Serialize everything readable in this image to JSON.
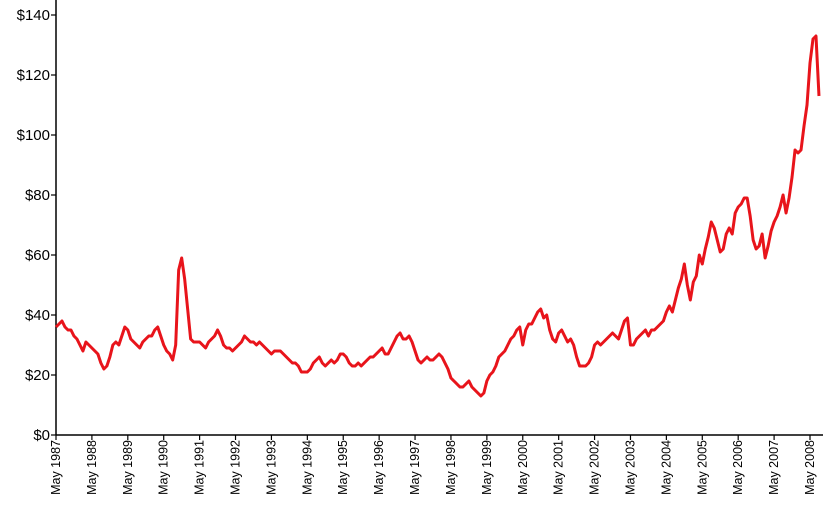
{
  "chart_data": {
    "type": "line",
    "color": "#e8141b",
    "ylim": [
      0,
      140
    ],
    "yticks": [
      {
        "value": 0,
        "label": "$0"
      },
      {
        "value": 20,
        "label": "$20"
      },
      {
        "value": 40,
        "label": "$40"
      },
      {
        "value": 60,
        "label": "$60"
      },
      {
        "value": 80,
        "label": "$80"
      },
      {
        "value": 100,
        "label": "$100"
      },
      {
        "value": 120,
        "label": "$120"
      },
      {
        "value": 140,
        "label": "$140"
      }
    ],
    "categories": [
      "May 1987",
      null,
      null,
      null,
      null,
      null,
      null,
      null,
      null,
      null,
      null,
      null,
      "May 1988",
      null,
      null,
      null,
      null,
      null,
      null,
      null,
      null,
      null,
      null,
      null,
      "May 1989",
      null,
      null,
      null,
      null,
      null,
      null,
      null,
      null,
      null,
      null,
      null,
      "May 1990",
      null,
      null,
      null,
      null,
      null,
      null,
      null,
      null,
      null,
      null,
      null,
      "May 1991",
      null,
      null,
      null,
      null,
      null,
      null,
      null,
      null,
      null,
      null,
      null,
      "May 1992",
      null,
      null,
      null,
      null,
      null,
      null,
      null,
      null,
      null,
      null,
      null,
      "May 1993",
      null,
      null,
      null,
      null,
      null,
      null,
      null,
      null,
      null,
      null,
      null,
      "May 1994",
      null,
      null,
      null,
      null,
      null,
      null,
      null,
      null,
      null,
      null,
      null,
      "May 1995",
      null,
      null,
      null,
      null,
      null,
      null,
      null,
      null,
      null,
      null,
      null,
      "May 1996",
      null,
      null,
      null,
      null,
      null,
      null,
      null,
      null,
      null,
      null,
      null,
      "May 1997",
      null,
      null,
      null,
      null,
      null,
      null,
      null,
      null,
      null,
      null,
      null,
      "May 1998",
      null,
      null,
      null,
      null,
      null,
      null,
      null,
      null,
      null,
      null,
      null,
      "May 1999",
      null,
      null,
      null,
      null,
      null,
      null,
      null,
      null,
      null,
      null,
      null,
      "May 2000",
      null,
      null,
      null,
      null,
      null,
      null,
      null,
      null,
      null,
      null,
      null,
      "May 2001",
      null,
      null,
      null,
      null,
      null,
      null,
      null,
      null,
      null,
      null,
      null,
      "May 2002",
      null,
      null,
      null,
      null,
      null,
      null,
      null,
      null,
      null,
      null,
      null,
      "May 2003",
      null,
      null,
      null,
      null,
      null,
      null,
      null,
      null,
      null,
      null,
      null,
      "May 2004",
      null,
      null,
      null,
      null,
      null,
      null,
      null,
      null,
      null,
      null,
      null,
      "May 2005",
      null,
      null,
      null,
      null,
      null,
      null,
      null,
      null,
      null,
      null,
      null,
      "May 2006",
      null,
      null,
      null,
      null,
      null,
      null,
      null,
      null,
      null,
      null,
      null,
      "May 2007",
      null,
      null,
      null,
      null,
      null,
      null,
      null,
      null,
      null,
      null,
      null,
      "May 2008",
      null,
      null,
      null
    ],
    "values": [
      36,
      37,
      38,
      36,
      35,
      35,
      33,
      32,
      30,
      28,
      31,
      30,
      29,
      28,
      27,
      24,
      22,
      23,
      26,
      30,
      31,
      30,
      33,
      36,
      35,
      32,
      31,
      30,
      29,
      31,
      32,
      33,
      33,
      35,
      36,
      33,
      30,
      28,
      27,
      25,
      30,
      55,
      59,
      52,
      42,
      32,
      31,
      31,
      31,
      30,
      29,
      31,
      32,
      33,
      35,
      33,
      30,
      29,
      29,
      28,
      29,
      30,
      31,
      33,
      32,
      31,
      31,
      30,
      31,
      30,
      29,
      28,
      27,
      28,
      28,
      28,
      27,
      26,
      25,
      24,
      24,
      23,
      21,
      21,
      21,
      22,
      24,
      25,
      26,
      24,
      23,
      24,
      25,
      24,
      25,
      27,
      27,
      26,
      24,
      23,
      23,
      24,
      23,
      24,
      25,
      26,
      26,
      27,
      28,
      29,
      27,
      27,
      29,
      31,
      33,
      34,
      32,
      32,
      33,
      31,
      28,
      25,
      24,
      25,
      26,
      25,
      25,
      26,
      27,
      26,
      24,
      22,
      19,
      18,
      17,
      16,
      16,
      17,
      18,
      16,
      15,
      14,
      13,
      14,
      18,
      20,
      21,
      23,
      26,
      27,
      28,
      30,
      32,
      33,
      35,
      36,
      30,
      35,
      37,
      37,
      39,
      41,
      42,
      39,
      40,
      35,
      32,
      31,
      34,
      35,
      33,
      31,
      32,
      30,
      26,
      23,
      23,
      23,
      24,
      26,
      30,
      31,
      30,
      31,
      32,
      33,
      34,
      33,
      32,
      35,
      38,
      39,
      30,
      30,
      32,
      33,
      34,
      35,
      33,
      35,
      35,
      36,
      37,
      38,
      41,
      43,
      41,
      45,
      49,
      52,
      57,
      50,
      45,
      51,
      53,
      60,
      57,
      62,
      66,
      71,
      69,
      65,
      61,
      62,
      67,
      69,
      67,
      74,
      76,
      77,
      79,
      79,
      73,
      65,
      62,
      63,
      67,
      59,
      63,
      68,
      71,
      73,
      76,
      80,
      74,
      79,
      86,
      95,
      94,
      95,
      103,
      110,
      124,
      132,
      133,
      113
    ]
  }
}
